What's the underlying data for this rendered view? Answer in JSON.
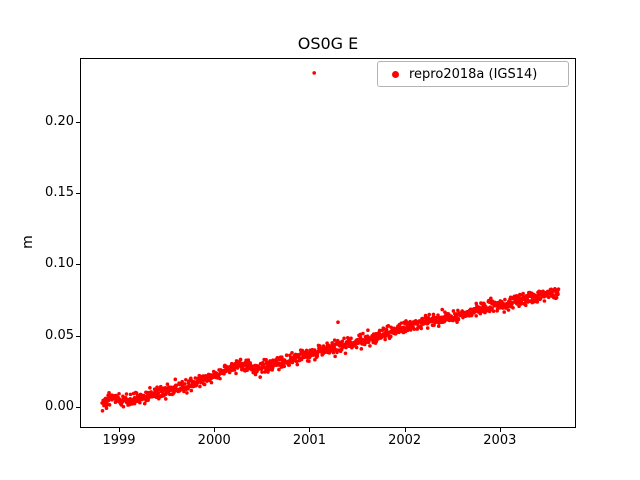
{
  "chart_data": {
    "type": "scatter",
    "title": "OS0G E",
    "xlabel": "",
    "ylabel": "m",
    "xlim": [
      1998.59,
      2003.8
    ],
    "ylim": [
      -0.0147,
      0.2448
    ],
    "x_ticks": [
      {
        "value": 1999,
        "label": "1999"
      },
      {
        "value": 2000,
        "label": "2000"
      },
      {
        "value": 2001,
        "label": "2001"
      },
      {
        "value": 2002,
        "label": "2002"
      },
      {
        "value": 2003,
        "label": "2003"
      }
    ],
    "y_ticks": [
      {
        "value": 0.0,
        "label": "0.00"
      },
      {
        "value": 0.05,
        "label": "0.05"
      },
      {
        "value": 0.1,
        "label": "0.10"
      },
      {
        "value": 0.15,
        "label": "0.15"
      },
      {
        "value": 0.2,
        "label": "0.20"
      }
    ],
    "legend": [
      {
        "label": "repro2018a (IGS14)",
        "color": "#ff0000",
        "marker": "dot",
        "position": "upper right"
      }
    ],
    "grid": false,
    "series": [
      {
        "name": "repro2018a (IGS14)",
        "color": "#ff0000",
        "marker_radius": 1.8,
        "n_points": 1200,
        "seed": 42,
        "x_range": [
          1998.82,
          2003.62
        ],
        "noise_sd": 0.0022,
        "trend": [
          [
            1998.82,
            0.001
          ],
          [
            1998.88,
            0.005
          ],
          [
            1998.95,
            0.007
          ],
          [
            1999.05,
            0.004
          ],
          [
            1999.15,
            0.005
          ],
          [
            1999.3,
            0.008
          ],
          [
            1999.5,
            0.011
          ],
          [
            1999.75,
            0.016
          ],
          [
            2000.0,
            0.022
          ],
          [
            2000.18,
            0.028
          ],
          [
            2000.3,
            0.03
          ],
          [
            2000.45,
            0.027
          ],
          [
            2000.6,
            0.029
          ],
          [
            2000.8,
            0.033
          ],
          [
            2001.0,
            0.037
          ],
          [
            2001.2,
            0.041
          ],
          [
            2001.5,
            0.0455
          ],
          [
            2001.75,
            0.05
          ],
          [
            2002.0,
            0.056
          ],
          [
            2002.25,
            0.06
          ],
          [
            2002.5,
            0.063
          ],
          [
            2002.75,
            0.068
          ],
          [
            2003.0,
            0.072
          ],
          [
            2003.25,
            0.0755
          ],
          [
            2003.45,
            0.078
          ],
          [
            2003.62,
            0.081
          ]
        ],
        "outliers": [
          [
            2001.05,
            0.2343
          ],
          [
            2001.3,
            0.0595
          ],
          [
            2001.27,
            0.0355
          ]
        ]
      }
    ]
  }
}
